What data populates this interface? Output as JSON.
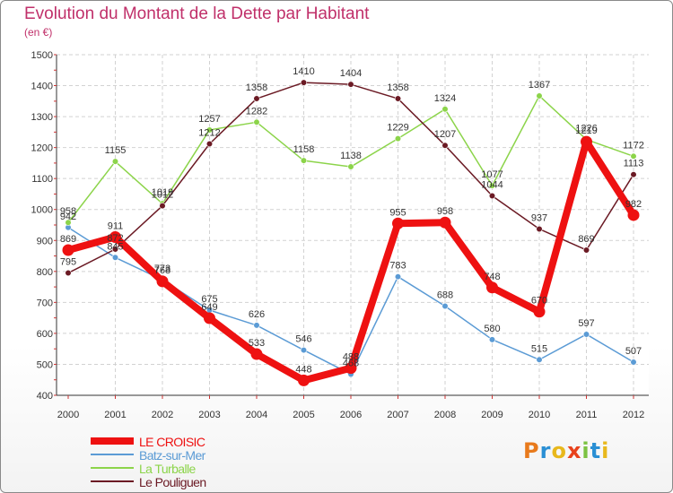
{
  "title": "Evolution du Montant de la Dette par Habitant",
  "unit": "(en €)",
  "logo": {
    "text": "Proxiti",
    "letters": [
      {
        "char": "P",
        "color": "#e87a1c"
      },
      {
        "char": "r",
        "color": "#2a8fd4"
      },
      {
        "char": "o",
        "color": "#e8b81c"
      },
      {
        "char": "x",
        "color": "#e8421c"
      },
      {
        "char": "i",
        "color": "#7cc242"
      },
      {
        "char": "t",
        "color": "#2a8fd4"
      },
      {
        "char": "i",
        "color": "#e8b81c"
      }
    ]
  },
  "chart_data": {
    "type": "line",
    "title": "Evolution du Montant de la Dette par Habitant",
    "ylabel": "(en €)",
    "xlabel": "",
    "ylim": [
      400,
      1500
    ],
    "yticks": [
      400,
      500,
      600,
      700,
      800,
      900,
      1000,
      1100,
      1200,
      1300,
      1400,
      1500
    ],
    "grid": true,
    "legend_position": "bottom-left",
    "x": [
      "2000",
      "2001",
      "2002",
      "2003",
      "2004",
      "2005",
      "2006",
      "2007",
      "2008",
      "2009",
      "2010",
      "2011",
      "2012"
    ],
    "series": [
      {
        "name": "LE CROISIC",
        "color": "#ee1111",
        "width": 8,
        "marker": 6.5,
        "values": [
          869,
          911,
          768,
          649,
          533,
          448,
          488,
          955,
          958,
          748,
          670,
          1219,
          982
        ]
      },
      {
        "name": "Batz-sur-Mer",
        "color": "#5b9bd5",
        "width": 1.5,
        "marker": 3.3,
        "values": [
          942,
          845,
          773,
          675,
          626,
          546,
          468,
          783,
          688,
          580,
          515,
          597,
          507
        ]
      },
      {
        "name": "La Turballe",
        "color": "#8cd44a",
        "width": 1.5,
        "marker": 3.3,
        "values": [
          958,
          1155,
          1019,
          1257,
          1282,
          1158,
          1138,
          1229,
          1324,
          1077,
          1367,
          1226,
          1172
        ]
      },
      {
        "name": "Le Pouliguen",
        "color": "#6b1a24",
        "width": 1.5,
        "marker": 3.3,
        "values": [
          795,
          872,
          1012,
          1212,
          1358,
          1410,
          1404,
          1358,
          1207,
          1044,
          937,
          869,
          1113
        ]
      }
    ]
  }
}
